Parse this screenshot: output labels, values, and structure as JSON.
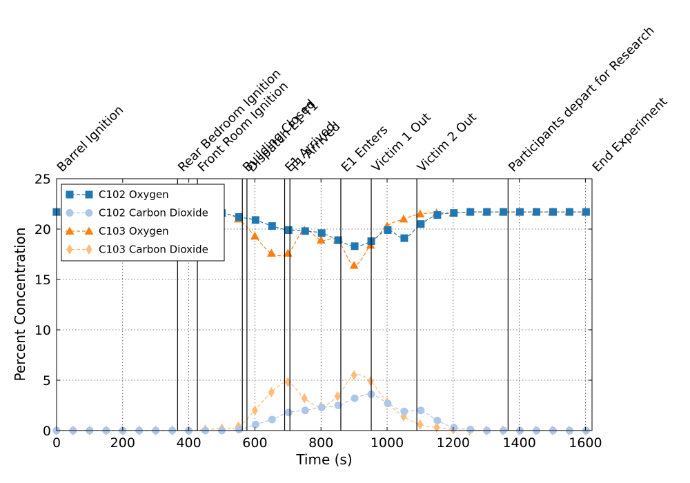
{
  "chart_data": {
    "type": "line",
    "xlabel": "Time (s)",
    "ylabel": "Percent Concentration",
    "xlim": [
      0,
      1620
    ],
    "ylim": [
      0,
      25
    ],
    "xticks": [
      0,
      200,
      400,
      600,
      800,
      1000,
      1200,
      1400,
      1600
    ],
    "yticks": [
      0,
      5,
      10,
      15,
      20,
      25
    ],
    "grid": true,
    "legend_position": "top-left",
    "events": [
      {
        "time": 0,
        "label": "Barrel Ignition"
      },
      {
        "time": 366,
        "label": "Rear Bedroom Ignition"
      },
      {
        "time": 426,
        "label": "Front Room Ignition"
      },
      {
        "time": 562,
        "label": "Building Closed"
      },
      {
        "time": 576,
        "label": "Dispatch E1 T1"
      },
      {
        "time": 690,
        "label": "E1 Arrived"
      },
      {
        "time": 706,
        "label": "T1 Arrived"
      },
      {
        "time": 860,
        "label": "E1 Enters"
      },
      {
        "time": 952,
        "label": "Victim 1 Out"
      },
      {
        "time": 1090,
        "label": "Victim 2 Out"
      },
      {
        "time": 1366,
        "label": "Participants depart for Research"
      },
      {
        "time": 1620,
        "label": "End Experiment"
      }
    ],
    "series": [
      {
        "name": "C102 Oxygen",
        "color": "#1f77b4",
        "marker": "square",
        "points": [
          [
            0,
            21.7
          ],
          [
            50,
            21.7
          ],
          [
            100,
            21.7
          ],
          [
            150,
            21.7
          ],
          [
            200,
            21.7
          ],
          [
            250,
            21.7
          ],
          [
            300,
            21.7
          ],
          [
            350,
            21.7
          ],
          [
            400,
            21.7
          ],
          [
            450,
            21.7
          ],
          [
            500,
            21.6
          ],
          [
            552,
            21.2
          ],
          [
            602,
            20.9
          ],
          [
            652,
            20.3
          ],
          [
            702,
            19.9
          ],
          [
            752,
            19.8
          ],
          [
            802,
            19.6
          ],
          [
            852,
            18.9
          ],
          [
            902,
            18.3
          ],
          [
            952,
            18.8
          ],
          [
            1002,
            19.9
          ],
          [
            1052,
            19.1
          ],
          [
            1102,
            20.5
          ],
          [
            1152,
            21.4
          ],
          [
            1202,
            21.6
          ],
          [
            1252,
            21.7
          ],
          [
            1302,
            21.7
          ],
          [
            1352,
            21.7
          ],
          [
            1402,
            21.7
          ],
          [
            1452,
            21.7
          ],
          [
            1502,
            21.7
          ],
          [
            1552,
            21.7
          ],
          [
            1602,
            21.7
          ]
        ]
      },
      {
        "name": "C102 Carbon Dioxide",
        "color": "#aec7e8",
        "marker": "circle",
        "points": [
          [
            0,
            0
          ],
          [
            50,
            0
          ],
          [
            100,
            0
          ],
          [
            150,
            0
          ],
          [
            200,
            0
          ],
          [
            250,
            0
          ],
          [
            300,
            0
          ],
          [
            350,
            0
          ],
          [
            400,
            0
          ],
          [
            450,
            0
          ],
          [
            500,
            0
          ],
          [
            552,
            0.1
          ],
          [
            602,
            0.6
          ],
          [
            652,
            1.1
          ],
          [
            702,
            1.8
          ],
          [
            752,
            2.0
          ],
          [
            802,
            2.3
          ],
          [
            852,
            2.5
          ],
          [
            902,
            3.2
          ],
          [
            952,
            3.6
          ],
          [
            1002,
            2.7
          ],
          [
            1052,
            1.9
          ],
          [
            1102,
            2.0
          ],
          [
            1152,
            1.0
          ],
          [
            1202,
            0.3
          ],
          [
            1252,
            0.1
          ],
          [
            1302,
            0
          ],
          [
            1352,
            0
          ],
          [
            1402,
            0
          ],
          [
            1452,
            0
          ],
          [
            1502,
            0
          ],
          [
            1552,
            0
          ],
          [
            1602,
            0
          ]
        ]
      },
      {
        "name": "C103 Oxygen",
        "color": "#ff7f0e",
        "marker": "triangle",
        "points": [
          [
            0,
            21.7
          ],
          [
            50,
            21.7
          ],
          [
            100,
            21.7
          ],
          [
            150,
            21.7
          ],
          [
            200,
            21.7
          ],
          [
            250,
            21.7
          ],
          [
            300,
            21.7
          ],
          [
            350,
            21.7
          ],
          [
            400,
            21.7
          ],
          [
            450,
            21.7
          ],
          [
            500,
            21.6
          ],
          [
            550,
            21.0
          ],
          [
            600,
            19.3
          ],
          [
            650,
            17.6
          ],
          [
            700,
            17.6
          ],
          [
            750,
            19.9
          ],
          [
            800,
            18.9
          ],
          [
            850,
            18.9
          ],
          [
            900,
            16.4
          ],
          [
            950,
            18.4
          ],
          [
            1000,
            20.3
          ],
          [
            1050,
            21.0
          ],
          [
            1100,
            21.5
          ],
          [
            1150,
            21.6
          ],
          [
            1200,
            21.6
          ],
          [
            1250,
            21.7
          ],
          [
            1300,
            21.7
          ],
          [
            1350,
            21.7
          ],
          [
            1400,
            21.7
          ],
          [
            1450,
            21.7
          ],
          [
            1500,
            21.7
          ],
          [
            1550,
            21.7
          ],
          [
            1600,
            21.7
          ]
        ]
      },
      {
        "name": "C103 Carbon Dioxide",
        "color": "#ffbb78",
        "marker": "diamond",
        "points": [
          [
            0,
            0
          ],
          [
            50,
            0
          ],
          [
            100,
            0
          ],
          [
            150,
            0
          ],
          [
            200,
            0
          ],
          [
            250,
            0
          ],
          [
            300,
            0
          ],
          [
            350,
            0
          ],
          [
            400,
            0
          ],
          [
            450,
            0.1
          ],
          [
            500,
            0.2
          ],
          [
            550,
            0.4
          ],
          [
            600,
            2.0
          ],
          [
            650,
            3.8
          ],
          [
            700,
            4.8
          ],
          [
            750,
            3.2
          ],
          [
            800,
            2.4
          ],
          [
            850,
            3.4
          ],
          [
            900,
            5.5
          ],
          [
            950,
            4.9
          ],
          [
            1000,
            2.8
          ],
          [
            1050,
            1.4
          ],
          [
            1100,
            0.6
          ],
          [
            1150,
            0.3
          ],
          [
            1200,
            0.1
          ],
          [
            1250,
            0
          ],
          [
            1300,
            0
          ],
          [
            1350,
            0
          ],
          [
            1400,
            0
          ],
          [
            1450,
            0
          ],
          [
            1500,
            0
          ],
          [
            1550,
            0
          ],
          [
            1600,
            0
          ]
        ]
      }
    ]
  }
}
